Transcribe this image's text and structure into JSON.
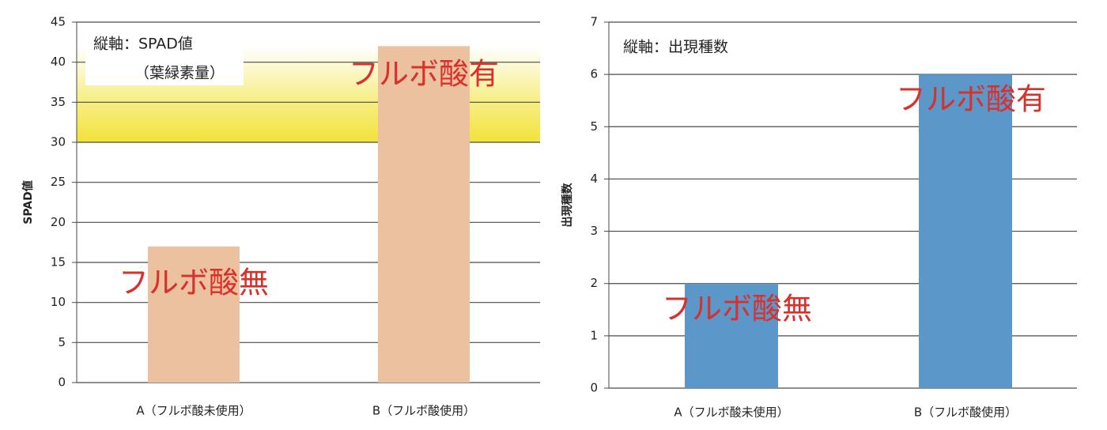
{
  "chart_data": [
    {
      "type": "bar",
      "ylabel": "SPAD値",
      "annotation": [
        "縦軸：SPAD値",
        "（葉緑素量）"
      ],
      "categories": [
        "A（フルボ酸未使用）",
        "B（フルボ酸使用）"
      ],
      "values": [
        17,
        42
      ],
      "bar_labels": [
        "フルボ酸無",
        "フルボ酸有"
      ],
      "color": "#ecc19f",
      "band": [
        30,
        42
      ],
      "band_color": "#f2e33a",
      "ylim": [
        0,
        45
      ],
      "yticks": [
        0,
        5,
        10,
        15,
        20,
        25,
        30,
        35,
        40,
        45
      ],
      "grid": true
    },
    {
      "type": "bar",
      "ylabel": "出現種数",
      "annotation": [
        "縦軸：出現種数"
      ],
      "categories": [
        "A（フルボ酸未使用）",
        "B（フルボ酸使用）"
      ],
      "values": [
        2,
        6
      ],
      "bar_labels": [
        "フルボ酸無",
        "フルボ酸有"
      ],
      "color": "#5b97c9",
      "ylim": [
        0,
        7
      ],
      "yticks": [
        0,
        1,
        2,
        3,
        4,
        5,
        6,
        7
      ],
      "grid": true
    }
  ]
}
